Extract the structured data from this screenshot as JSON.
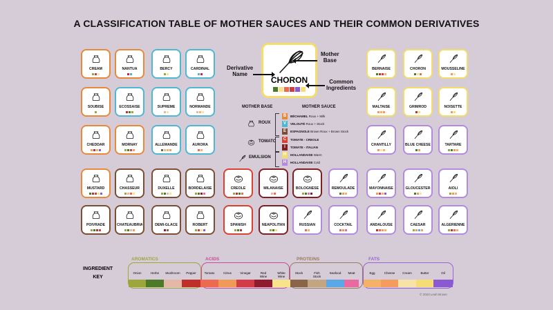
{
  "title": "A CLASSIFICATION TABLE OF MOTHER SAUCES AND THEIR COMMON DERIVATIVES",
  "colors": {
    "bechamel": "#e8893a",
    "veloute": "#4fb7d0",
    "espagnole": "#7a4e33",
    "tomato_creole": "#d8412f",
    "tomato_italian": "#7e1f24",
    "hollandaise": "#f5dd6b",
    "emulsion": "#b28ade",
    "onion": "#9ca63a",
    "herbs": "#4d7a2a",
    "mushroom": "#e4b7a6",
    "pepper": "#c0302a",
    "tomato": "#ec6a4f",
    "citrus": "#f19a57",
    "vinegar": "#d23c46",
    "red_wine": "#8e1b2e",
    "white_wine": "#f8e38d",
    "stock": "#8a6548",
    "fish_stock": "#c4a582",
    "seafood": "#5aa8e6",
    "meat": "#e96aa0",
    "egg": "#f5b266",
    "cheese": "#f49c5d",
    "cream": "#f7e2a7",
    "butter": "#f6dc74",
    "oil": "#8a5ad0"
  },
  "legend_card": {
    "name": "CHORON",
    "icon": "whisk-icon",
    "label_mother_base": "Mother\nBase",
    "label_derivative": "Derivative\nName",
    "label_ingredients": "Common\nIngredients"
  },
  "mother_legend": {
    "head_left": "MOTHER BASE",
    "head_right": "MOTHER SAUCE",
    "groups": [
      {
        "base": "ROUX",
        "icon": "sack-icon"
      },
      {
        "base": "TOMATO",
        "icon": "tomato-icon"
      },
      {
        "base": "EMULSION",
        "icon": "whisk-icon"
      }
    ],
    "sauces": [
      {
        "letter": "B",
        "name": "BÉCHAMEL",
        "desc": "Roux + Milk",
        "color": "#e8893a"
      },
      {
        "letter": "V",
        "name": "VELOUTÉ",
        "desc": "Roux + Stock",
        "color": "#4fb7d0"
      },
      {
        "letter": "E",
        "name": "ESPAGNOLE",
        "desc": "Brown Roux + Brown Stock",
        "color": "#7a4e33"
      },
      {
        "letter": "C",
        "name": "TOMATE - CREOLE",
        "desc": "",
        "color": "#d8412f"
      },
      {
        "letter": "I",
        "name": "TOMATE - ITALIAN",
        "desc": "",
        "color": "#7e1f24"
      },
      {
        "letter": "H",
        "name": "HOLLANDAISE",
        "desc": "Warm",
        "color": "#f5dd6b"
      },
      {
        "letter": "H",
        "name": "HOLLANDAISE",
        "desc": "Cold",
        "color": "#b28ade"
      }
    ]
  },
  "cards": [
    {
      "name": "CREAM",
      "icon": "sack-icon",
      "color": "#e8893a",
      "sw": [
        "#9ca63a",
        "#d23c46",
        "#f7e2a7"
      ]
    },
    {
      "name": "NANTUA",
      "icon": "sack-icon",
      "color": "#e8893a",
      "sw": [
        "#c0302a",
        "#5aa8e6"
      ]
    },
    {
      "name": "BERCY",
      "icon": "sack-icon",
      "color": "#4fb7d0",
      "sw": [
        "#9ca63a",
        "#f8e38d"
      ]
    },
    {
      "name": "CARDINAL",
      "icon": "sack-icon",
      "color": "#4fb7d0",
      "sw": [
        "#5aa8e6",
        "#c0302a"
      ]
    },
    {
      "name": "SOUBISE",
      "icon": "sack-icon",
      "color": "#e8893a",
      "sw": [
        "#9ca63a"
      ]
    },
    {
      "name": "ÉCOSSAISE",
      "icon": "sack-icon",
      "color": "#4fb7d0",
      "sw": [
        "#c0302a",
        "#4d7a2a",
        "#9ca63a"
      ]
    },
    {
      "name": "SUPRÊME",
      "icon": "sack-icon",
      "color": "#4fb7d0",
      "sw": [
        "#e4b7a6",
        "#f7e2a7"
      ]
    },
    {
      "name": "NORMANDE",
      "icon": "sack-icon",
      "color": "#4fb7d0",
      "sw": [
        "#e4b7a6",
        "#f5b266",
        "#f7e2a7"
      ]
    },
    {
      "name": "CHEDDAR",
      "icon": "sack-icon",
      "color": "#e8893a",
      "sw": [
        "#f49c5d",
        "#c0302a",
        "#f5b266",
        "#8a5ad0"
      ]
    },
    {
      "name": "MORNAY",
      "icon": "sack-icon",
      "color": "#e8893a",
      "sw": [
        "#9ca63a",
        "#4d7a2a",
        "#d23c46",
        "#f49c5d"
      ]
    },
    {
      "name": "ALLEMANDE",
      "icon": "sack-icon",
      "color": "#4fb7d0",
      "sw": [
        "#4d7a2a",
        "#e4b7a6",
        "#f5b266",
        "#f49c5d"
      ]
    },
    {
      "name": "AURORA",
      "icon": "sack-icon",
      "color": "#4fb7d0",
      "sw": [
        "#ec6a4f",
        "#f5b266"
      ]
    },
    {
      "name": "MUSTARD",
      "icon": "sack-icon",
      "color": "#e8893a",
      "sw": [
        "#4d7a2a",
        "#c0302a",
        "#d23c46",
        "#f6dc74",
        "#8a5ad0"
      ]
    },
    {
      "name": "CHASSEUR",
      "icon": "sack-icon",
      "color": "#7a4e33",
      "sw": [
        "#9ca63a",
        "#e4b7a6",
        "#ec6a4f",
        "#f8e38d"
      ]
    },
    {
      "name": "DUXELLE",
      "icon": "sack-icon",
      "color": "#7a4e33",
      "sw": [
        "#9ca63a",
        "#4d7a2a",
        "#e4b7a6",
        "#f8e38d"
      ]
    },
    {
      "name": "BORDELAISE",
      "icon": "sack-icon",
      "color": "#7a4e33",
      "sw": [
        "#9ca63a",
        "#4d7a2a",
        "#8e1b2e",
        "#e96aa0"
      ]
    },
    {
      "name": "POIVRADE",
      "icon": "sack-icon",
      "color": "#7a4e33",
      "sw": [
        "#9ca63a",
        "#4d7a2a",
        "#c0302a",
        "#d23c46"
      ]
    },
    {
      "name": "CHATEAUBRIAND",
      "icon": "sack-icon",
      "color": "#7a4e33",
      "sw": [
        "#9ca63a",
        "#4d7a2a",
        "#e4b7a6",
        "#f19a57"
      ]
    },
    {
      "name": "DEMI-GLACE",
      "icon": "sack-icon",
      "color": "#7a4e33",
      "sw": [
        "#8e1b2e",
        "#8a6548"
      ]
    },
    {
      "name": "ROBERT",
      "icon": "sack-icon",
      "color": "#7a4e33",
      "sw": [
        "#9ca63a",
        "#d23c46",
        "#f8e38d",
        "#8a5ad0"
      ]
    },
    {
      "name": "CREOLE",
      "icon": "tomato-icon",
      "color": "#d8412f",
      "sw": [
        "#9ca63a",
        "#c0302a",
        "#4d7a2a",
        "#ec6a4f"
      ]
    },
    {
      "name": "MILANAISE",
      "icon": "tomato-icon",
      "color": "#7e1f24",
      "sw": [
        "#e4b7a6",
        "#ec6a4f"
      ]
    },
    {
      "name": "BOLOGNESE",
      "icon": "tomato-icon",
      "color": "#7e1f24",
      "sw": [
        "#9ca63a",
        "#4d7a2a",
        "#e96aa0",
        "#8e1b2e"
      ]
    },
    {
      "name": "REMOULADE",
      "icon": "whisk-icon",
      "color": "#b28ade",
      "sw": [
        "#4d7a2a",
        "#f19a57",
        "#f5b266"
      ]
    },
    {
      "name": "SPANISH",
      "icon": "tomato-icon",
      "color": "#d8412f",
      "sw": [
        "#9ca63a",
        "#4d7a2a",
        "#c0302a"
      ]
    },
    {
      "name": "NEAPOLITAN",
      "icon": "tomato-icon",
      "color": "#7e1f24",
      "sw": [
        "#9ca63a",
        "#4d7a2a",
        "#f6dc74"
      ]
    },
    {
      "name": "RUSSIAN",
      "icon": "whisk-icon",
      "color": "#b28ade",
      "sw": [
        "#ec6a4f",
        "#f5b266"
      ]
    },
    {
      "name": "COCKTAIL",
      "icon": "whisk-icon",
      "color": "#b28ade",
      "sw": [
        "#ec6a4f",
        "#f19a57",
        "#e96aa0"
      ]
    },
    {
      "name": "BERNAISE",
      "icon": "whisk-icon",
      "color": "#f5dd6b",
      "sw": [
        "#4d7a2a",
        "#c0302a",
        "#d23c46",
        "#f5b266"
      ]
    },
    {
      "name": "CHORON",
      "icon": "whisk-icon",
      "color": "#f5dd6b",
      "sw": [
        "#4d7a2a",
        "#f8e38d",
        "#ec6a4f"
      ]
    },
    {
      "name": "MOUSSELINE",
      "icon": "whisk-icon",
      "color": "#f5dd6b",
      "sw": [
        "#f19a57",
        "#f7e2a7"
      ]
    },
    {
      "name": "MALTAISE",
      "icon": "whisk-icon",
      "color": "#f5dd6b",
      "sw": [
        "#f19a57",
        "#f5b266",
        "#f49c5d"
      ]
    },
    {
      "name": "GRIMROD",
      "icon": "whisk-icon",
      "color": "#f5dd6b",
      "sw": [
        "#c0302a",
        "#f6dc74"
      ]
    },
    {
      "name": "NOISETTE",
      "icon": "whisk-icon",
      "color": "#f5dd6b",
      "sw": [
        "#f19a57",
        "#f6dc74"
      ]
    },
    {
      "name": "CHANTILLY",
      "icon": "whisk-icon",
      "color": "#b28ade",
      "sw": [
        "#f19a57",
        "#f7e2a7",
        "#f5b266"
      ]
    },
    {
      "name": "BLUE CHEESE",
      "icon": "whisk-icon",
      "color": "#b28ade",
      "sw": [
        "#4d7a2a",
        "#f49c5d"
      ]
    },
    {
      "name": "TARTARE",
      "icon": "whisk-icon",
      "color": "#b28ade",
      "sw": [
        "#9ca63a",
        "#4d7a2a",
        "#f19a57",
        "#f5b266"
      ]
    },
    {
      "name": "MAYONNAISE",
      "icon": "whisk-icon",
      "color": "#b28ade",
      "sw": [
        "#f19a57",
        "#d23c46",
        "#f5b266",
        "#8a5ad0"
      ]
    },
    {
      "name": "GLOUCESTER",
      "icon": "whisk-icon",
      "color": "#b28ade",
      "sw": [
        "#4d7a2a",
        "#f19a57",
        "#f7e2a7"
      ]
    },
    {
      "name": "AIOLI",
      "icon": "whisk-icon",
      "color": "#b28ade",
      "sw": [
        "#9ca63a",
        "#f19a57",
        "#f5b266"
      ]
    },
    {
      "name": "ANDALOUSE",
      "icon": "whisk-icon",
      "color": "#b28ade",
      "sw": [
        "#c0302a",
        "#ec6a4f",
        "#f19a57",
        "#f5b266"
      ]
    },
    {
      "name": "CAESAR",
      "icon": "whisk-icon",
      "color": "#b28ade",
      "sw": [
        "#9ca63a",
        "#f19a57",
        "#5aa8e6",
        "#f49c5d"
      ]
    },
    {
      "name": "ALGÉRIENNE",
      "icon": "whisk-icon",
      "color": "#b28ade",
      "sw": [
        "#9ca63a",
        "#c0302a",
        "#ec6a4f",
        "#f5b266"
      ]
    }
  ],
  "key": {
    "title_line1": "INGREDIENT",
    "title_line2": "KEY",
    "groups": [
      {
        "label": "AROMATICS",
        "color": "#9ca63a"
      },
      {
        "label": "ACIDS",
        "color": "#c94b9c"
      },
      {
        "label": "PROTEINS",
        "color": "#9a7a5c"
      },
      {
        "label": "FATS",
        "color": "#9a62d6"
      }
    ],
    "items": [
      {
        "label": "Onion",
        "color": "#9ca63a"
      },
      {
        "label": "Herbs",
        "color": "#4d7a2a"
      },
      {
        "label": "Mushroom",
        "color": "#e4b7a6"
      },
      {
        "label": "Pepper",
        "color": "#c0302a"
      },
      {
        "label": "Tomato",
        "color": "#ec6a4f"
      },
      {
        "label": "Citrus",
        "color": "#f19a57"
      },
      {
        "label": "Vinegar",
        "color": "#d23c46"
      },
      {
        "label": "Red\nWine",
        "color": "#8e1b2e"
      },
      {
        "label": "White\nWine",
        "color": "#f8e38d"
      },
      {
        "label": "Stock",
        "color": "#8a6548"
      },
      {
        "label": "Fish\nStock",
        "color": "#c4a582"
      },
      {
        "label": "Seafood",
        "color": "#5aa8e6"
      },
      {
        "label": "Meat",
        "color": "#e96aa0"
      },
      {
        "label": "Egg",
        "color": "#f5b266"
      },
      {
        "label": "Cheese",
        "color": "#f49c5d"
      },
      {
        "label": "Cream",
        "color": "#f7e2a7"
      },
      {
        "label": "Butter",
        "color": "#f6dc74"
      },
      {
        "label": "Oil",
        "color": "#8a5ad0"
      }
    ]
  },
  "copyright": "© 2023 Leah Brown"
}
